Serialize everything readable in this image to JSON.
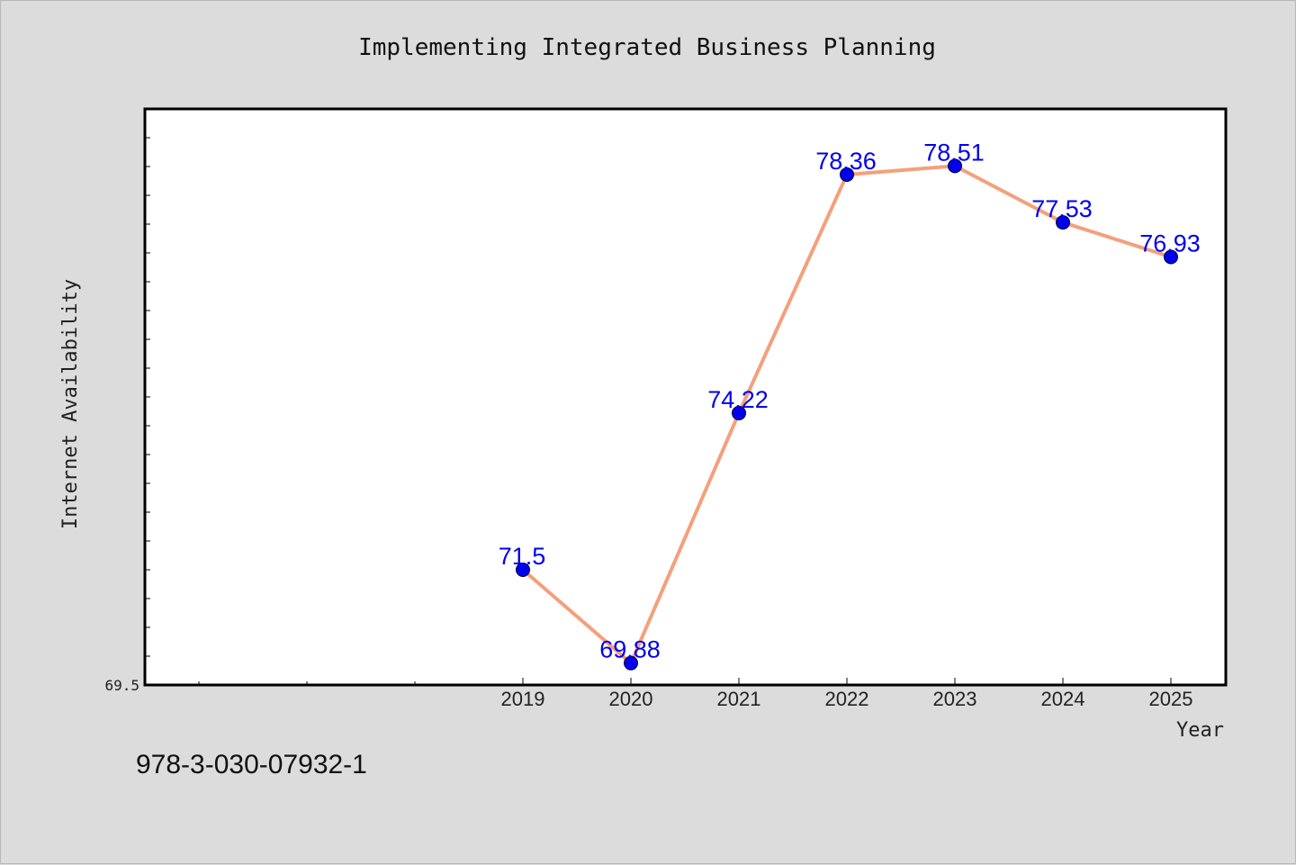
{
  "chart_data": {
    "type": "line",
    "title": "Implementing Integrated Business Planning",
    "xlabel": "Year",
    "ylabel": "Internet Availability",
    "x": [
      "2019",
      "2020",
      "2021",
      "2022",
      "2023",
      "2024",
      "2025"
    ],
    "series": [
      {
        "values": [
          71.5,
          69.88,
          74.22,
          78.36,
          78.51,
          77.53,
          76.93
        ]
      }
    ],
    "data_labels": [
      "71.5",
      "69.88",
      "74.22",
      "78.36",
      "78.51",
      "77.53",
      "76.93"
    ],
    "ylim": [
      69.5,
      79.5
    ],
    "ytick_labels": [
      "69.5"
    ],
    "grid": false,
    "line_color": "#f4a07c",
    "marker_color": "#0000ee",
    "label_color": "#0000ee"
  },
  "footer_text": "978-3-030-07932-1"
}
